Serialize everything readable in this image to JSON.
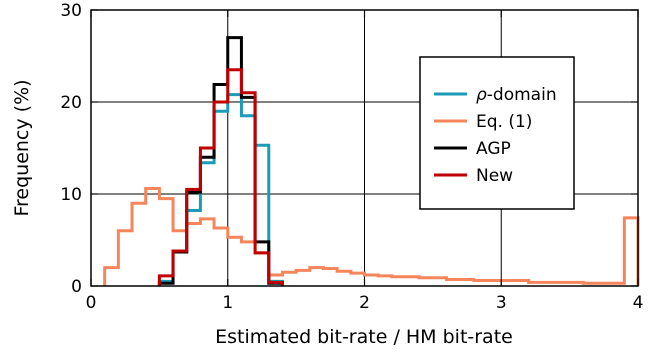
{
  "chart_data": {
    "type": "line",
    "subtype": "step-histogram",
    "xlabel": "Estimated bit-rate / HM bit-rate",
    "ylabel": "Frequency (%)",
    "xlim": [
      0,
      4
    ],
    "ylim": [
      0,
      30
    ],
    "xticks": [
      0,
      1,
      2,
      3,
      4
    ],
    "yticks": [
      0,
      10,
      20,
      30
    ],
    "grid": true,
    "legend_position": "upper-right",
    "bin_width": 0.1,
    "series": [
      {
        "name": "ρ-domain",
        "legend_prefix": "ρ",
        "legend_suffix": "-domain",
        "color": "#1a9bb8",
        "bins": [
          [
            0.5,
            0.6,
            0.5
          ],
          [
            0.6,
            0.7,
            3.7
          ],
          [
            0.7,
            0.8,
            8.2
          ],
          [
            0.8,
            0.9,
            13.4
          ],
          [
            0.9,
            1.0,
            19.0
          ],
          [
            1.0,
            1.1,
            20.8
          ],
          [
            1.1,
            1.2,
            18.5
          ],
          [
            1.2,
            1.3,
            15.3
          ],
          [
            1.3,
            1.4,
            0.5
          ]
        ]
      },
      {
        "name": "Eq. (1)",
        "color": "#f5855a",
        "bins": [
          [
            0.1,
            0.2,
            2.0
          ],
          [
            0.2,
            0.3,
            6.0
          ],
          [
            0.3,
            0.4,
            9.0
          ],
          [
            0.4,
            0.5,
            10.6
          ],
          [
            0.5,
            0.6,
            9.5
          ],
          [
            0.6,
            0.7,
            6.0
          ],
          [
            0.7,
            0.8,
            6.8
          ],
          [
            0.8,
            0.9,
            7.3
          ],
          [
            0.9,
            1.0,
            6.3
          ],
          [
            1.0,
            1.1,
            5.3
          ],
          [
            1.1,
            1.2,
            4.8
          ],
          [
            1.2,
            1.3,
            3.6
          ],
          [
            1.3,
            1.4,
            1.2
          ],
          [
            1.4,
            1.5,
            1.5
          ],
          [
            1.5,
            1.6,
            1.7
          ],
          [
            1.6,
            1.7,
            2.0
          ],
          [
            1.7,
            1.8,
            1.9
          ],
          [
            1.8,
            1.9,
            1.6
          ],
          [
            1.9,
            2.0,
            1.4
          ],
          [
            2.0,
            2.1,
            1.2
          ],
          [
            2.1,
            2.2,
            1.1
          ],
          [
            2.2,
            2.4,
            1.0
          ],
          [
            2.4,
            2.6,
            0.9
          ],
          [
            2.6,
            2.8,
            0.7
          ],
          [
            2.8,
            3.2,
            0.6
          ],
          [
            3.2,
            3.6,
            0.4
          ],
          [
            3.6,
            3.9,
            0.3
          ],
          [
            3.9,
            4.0,
            7.4
          ]
        ]
      },
      {
        "name": "AGP",
        "color": "#000000",
        "bins": [
          [
            0.5,
            0.6,
            0.3
          ],
          [
            0.6,
            0.7,
            3.7
          ],
          [
            0.7,
            0.8,
            10.2
          ],
          [
            0.8,
            0.9,
            14.0
          ],
          [
            0.9,
            1.0,
            21.9
          ],
          [
            1.0,
            1.1,
            27.0
          ],
          [
            1.1,
            1.2,
            20.5
          ],
          [
            1.2,
            1.3,
            4.8
          ],
          [
            1.3,
            1.4,
            0.3
          ]
        ]
      },
      {
        "name": "New",
        "color": "#c00000",
        "bins": [
          [
            0.5,
            0.6,
            1.1
          ],
          [
            0.6,
            0.7,
            3.8
          ],
          [
            0.7,
            0.8,
            10.5
          ],
          [
            0.8,
            0.9,
            15.0
          ],
          [
            0.9,
            1.0,
            20.0
          ],
          [
            1.0,
            1.1,
            23.5
          ],
          [
            1.1,
            1.2,
            21.0
          ],
          [
            1.2,
            1.3,
            3.6
          ],
          [
            1.3,
            1.4,
            0.4
          ]
        ]
      }
    ]
  }
}
